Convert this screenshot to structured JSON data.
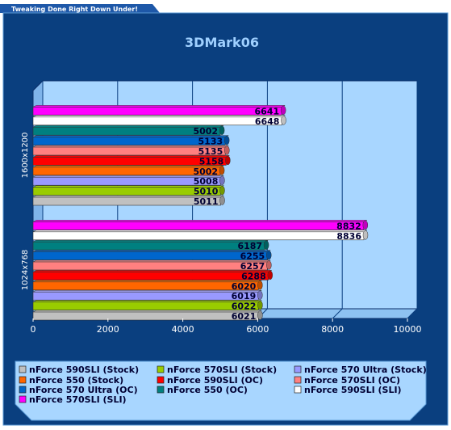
{
  "header": {
    "tab_text": "Tweaking Done Right Down Under!"
  },
  "chart_data": {
    "type": "bar",
    "orientation": "horizontal",
    "title": "3DMark06",
    "categories": [
      "1600x1200",
      "1024x768"
    ],
    "series": [
      {
        "name": "nForce 590SLI (Stock)",
        "color": "#c0c0c0",
        "values": [
          5011,
          6021
        ]
      },
      {
        "name": "nForce 570SLI (Stock)",
        "color": "#99cc00",
        "values": [
          5010,
          6022
        ]
      },
      {
        "name": "nForce 570 Ultra (Stock)",
        "color": "#9999ff",
        "values": [
          5008,
          6019
        ]
      },
      {
        "name": "nForce 550 (Stock)",
        "color": "#ff6600",
        "values": [
          5002,
          6020
        ]
      },
      {
        "name": "nForce 590SLI (OC)",
        "color": "#ff0000",
        "values": [
          5158,
          6288
        ]
      },
      {
        "name": "nForce 570SLI (OC)",
        "color": "#ff8080",
        "values": [
          5135,
          6257
        ]
      },
      {
        "name": "nForce 570 Ultra (OC)",
        "color": "#0066cc",
        "values": [
          5133,
          6255
        ]
      },
      {
        "name": "nForce 550 (OC)",
        "color": "#008080",
        "values": [
          5002,
          6187
        ]
      },
      {
        "name": "nForce 590SLI (SLI)",
        "color": "#ffffff",
        "values": [
          6648,
          8836
        ]
      },
      {
        "name": "nForce 570SLI (SLI)",
        "color": "#ff00ff",
        "values": [
          6641,
          8832
        ]
      }
    ],
    "xlim": [
      0,
      10000
    ],
    "xticks": [
      0,
      2000,
      4000,
      6000,
      8000,
      10000
    ],
    "grid": true,
    "legend_position": "bottom",
    "colors": {
      "background": "#0a3f7f",
      "plot_area": "#a8d6ff",
      "legend_box": "#a8d6ff",
      "tab": "#1e58a8"
    }
  }
}
